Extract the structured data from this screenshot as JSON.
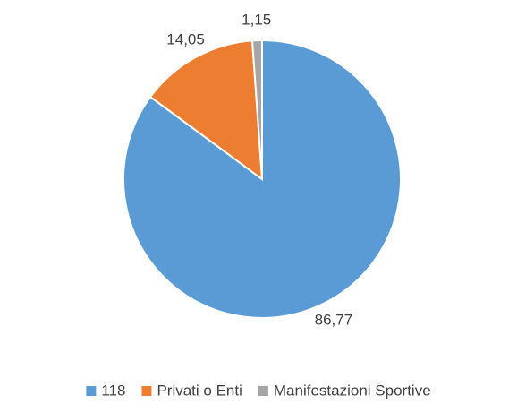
{
  "chart_data": {
    "type": "pie",
    "categories": [
      "118",
      "Privati o Enti",
      "Manifestazioni Sportive"
    ],
    "values": [
      86.77,
      14.05,
      1.15
    ],
    "value_labels": [
      "86,77",
      "14,05",
      "1,15"
    ],
    "colors": [
      "#5b9bd5",
      "#ed7d31",
      "#a5a5a5"
    ],
    "legend": "bottom"
  }
}
